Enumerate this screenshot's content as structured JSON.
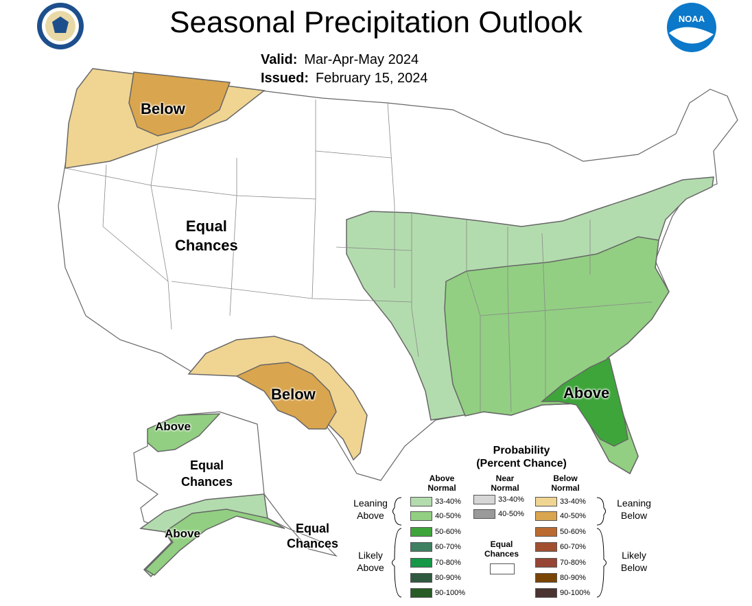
{
  "header": {
    "title": "Seasonal Precipitation Outlook",
    "valid_label": "Valid:",
    "valid_value": "Mar-Apr-May 2024",
    "issued_label": "Issued:",
    "issued_value": "February 15, 2024",
    "left_logo": "department-of-commerce-seal",
    "right_logo": "noaa-logo",
    "right_logo_text": "NOAA"
  },
  "map_labels": {
    "nw_below": "Below",
    "west_equal_1": "Equal",
    "west_equal_2": "Chances",
    "sw_below": "Below",
    "se_above": "Above",
    "ak_north_above": "Above",
    "ak_equal_1": "Equal",
    "ak_equal_2": "Chances",
    "ak_south_above": "Above",
    "ak_se_equal_1": "Equal",
    "ak_se_equal_2": "Chances"
  },
  "colors": {
    "above_33_40": "#b3dcae",
    "above_40_50": "#92cf82",
    "above_50_60": "#3ea53a",
    "above_60_70": "#3e8060",
    "above_70_80": "#169847",
    "above_80_90": "#2f5a3f",
    "above_90_100": "#285c25",
    "near_33_40": "#d6d6d6",
    "near_40_50": "#9a9a9a",
    "below_33_40": "#f0d492",
    "below_40_50": "#d9a54e",
    "below_50_60": "#bb6b30",
    "below_60_70": "#a24f2f",
    "below_70_80": "#974535",
    "below_80_90": "#7a4504",
    "below_90_100": "#4a3330",
    "equal": "#ffffff",
    "border": "#666666"
  },
  "legend": {
    "title_line1": "Probability",
    "title_line2": "(Percent Chance)",
    "above_header": "Above Normal",
    "near_header": "Near Normal",
    "below_header": "Below Normal",
    "leaning_above": "Leaning Above",
    "leaning_below": "Leaning Below",
    "likely_above": "Likely Above",
    "likely_below": "Likely Below",
    "equal_chances": "Equal Chances",
    "ranges": [
      "33-40%",
      "40-50%",
      "50-60%",
      "60-70%",
      "70-80%",
      "80-90%",
      "90-100%"
    ],
    "near_ranges": [
      "33-40%",
      "40-50%"
    ]
  }
}
